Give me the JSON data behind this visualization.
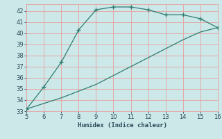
{
  "upper_x": [
    5,
    6,
    7,
    8,
    9,
    10,
    11,
    12,
    13,
    14,
    15,
    16
  ],
  "upper_y": [
    33.2,
    35.2,
    37.4,
    40.3,
    42.1,
    42.35,
    42.35,
    42.1,
    41.65,
    41.65,
    41.3,
    40.5
  ],
  "lower_x": [
    5,
    6,
    7,
    8,
    9,
    10,
    11,
    12,
    13,
    14,
    15,
    16
  ],
  "lower_y": [
    33.2,
    33.7,
    34.2,
    34.8,
    35.4,
    36.2,
    37.0,
    37.8,
    38.6,
    39.4,
    40.1,
    40.5
  ],
  "line_color": "#2e7d70",
  "bg_color": "#cce8e8",
  "grid_major_color": "#e8a0a0",
  "grid_minor_color": "#e8cccc",
  "xlabel": "Humidex (Indice chaleur)",
  "xlim": [
    5,
    16
  ],
  "ylim": [
    33,
    42.6
  ],
  "xticks": [
    5,
    6,
    7,
    8,
    9,
    10,
    11,
    12,
    13,
    14,
    15,
    16
  ],
  "yticks": [
    33,
    34,
    35,
    36,
    37,
    38,
    39,
    40,
    41,
    42
  ],
  "font_color": "#2a4a5a",
  "marker": "+"
}
